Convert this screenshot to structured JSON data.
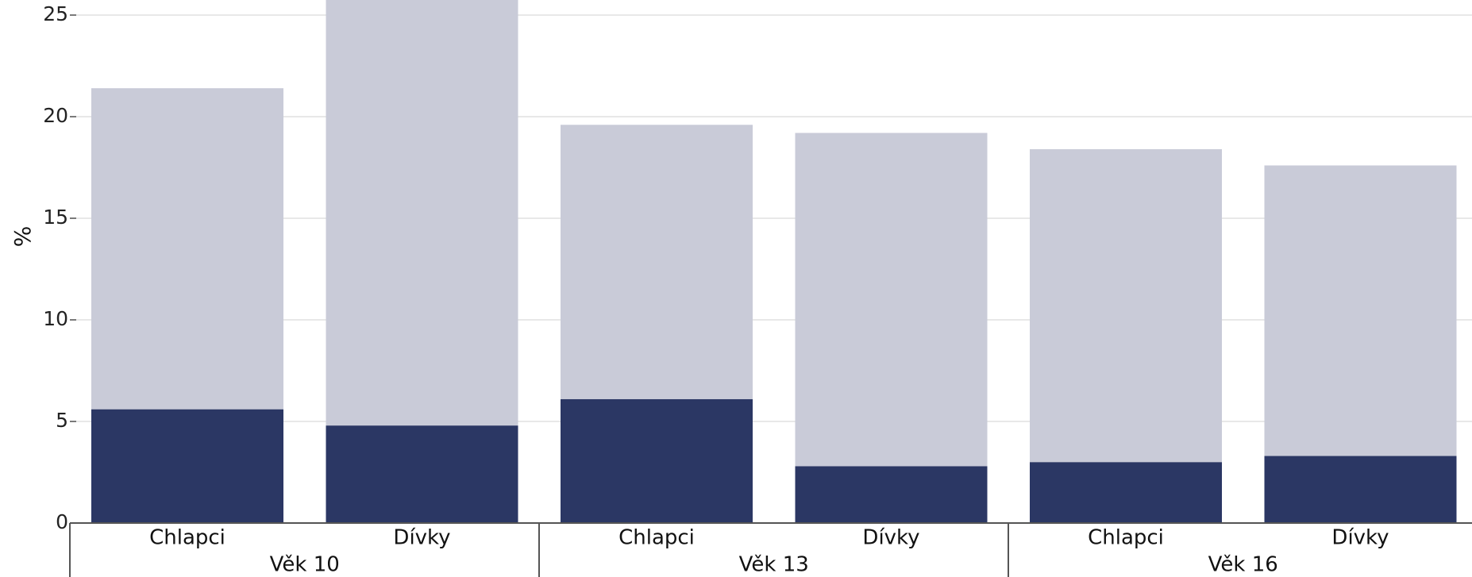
{
  "chart_data": {
    "type": "bar",
    "stacked": true,
    "title": "",
    "xlabel": "",
    "ylabel": "%",
    "ylim": [
      0,
      26
    ],
    "yticks": [
      0,
      5,
      10,
      15,
      20,
      25
    ],
    "grid": true,
    "groups": [
      {
        "label": "Věk 10",
        "categories": [
          "Chlapci",
          "Dívky"
        ]
      },
      {
        "label": "Věk 13",
        "categories": [
          "Chlapci",
          "Dívky"
        ]
      },
      {
        "label": "Věk 16",
        "categories": [
          "Chlapci",
          "Dívky"
        ]
      }
    ],
    "categories": [
      "Chlapci",
      "Dívky",
      "Chlapci",
      "Dívky",
      "Chlapci",
      "Dívky"
    ],
    "series": [
      {
        "color": "#2b3764",
        "values": [
          5.6,
          4.8,
          6.1,
          2.8,
          3.0,
          3.3
        ]
      },
      {
        "color": "#c9cbd8",
        "values": [
          15.8,
          21.2,
          13.5,
          16.4,
          15.4,
          14.3
        ]
      }
    ],
    "colors": {
      "grid": "#e8e8e8",
      "axis": "#555555"
    }
  }
}
